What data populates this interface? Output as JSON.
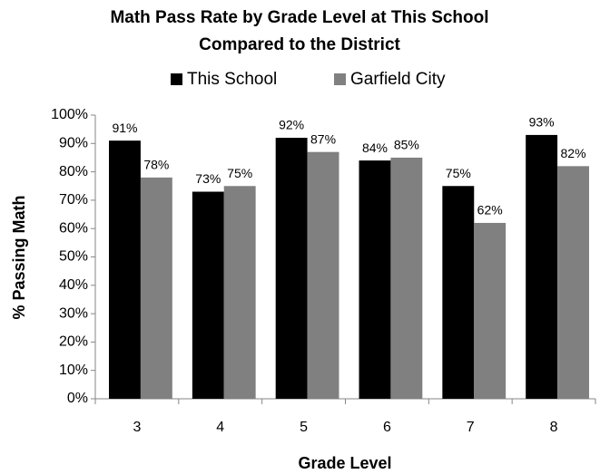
{
  "chart_data": {
    "type": "bar",
    "title": [
      "Math Pass Rate by Grade Level at This School",
      "Compared to the District"
    ],
    "x_label": "Grade Level",
    "y_label": "% Passing Math",
    "categories": [
      "3",
      "4",
      "5",
      "6",
      "7",
      "8"
    ],
    "series": [
      {
        "name": "This School",
        "color": "#000000",
        "values": [
          91,
          73,
          92,
          84,
          75,
          93
        ],
        "value_labels": [
          "91%",
          "73%",
          "92%",
          "84%",
          "75%",
          "93%"
        ]
      },
      {
        "name": "Garfield City",
        "color": "#808080",
        "values": [
          78,
          75,
          87,
          85,
          62,
          82
        ],
        "value_labels": [
          "78%",
          "75%",
          "87%",
          "85%",
          "62%",
          "82%"
        ]
      }
    ],
    "ylim": [
      0,
      100
    ],
    "yticks": [
      {
        "value": 0,
        "label": "0%"
      },
      {
        "value": 10,
        "label": "10%"
      },
      {
        "value": 20,
        "label": "20%"
      },
      {
        "value": 30,
        "label": "30%"
      },
      {
        "value": 40,
        "label": "40%"
      },
      {
        "value": 50,
        "label": "50%"
      },
      {
        "value": 60,
        "label": "60%"
      },
      {
        "value": 70,
        "label": "70%"
      },
      {
        "value": 80,
        "label": "80%"
      },
      {
        "value": 90,
        "label": "90%"
      },
      {
        "value": 100,
        "label": "100%"
      }
    ],
    "legend": "top"
  }
}
